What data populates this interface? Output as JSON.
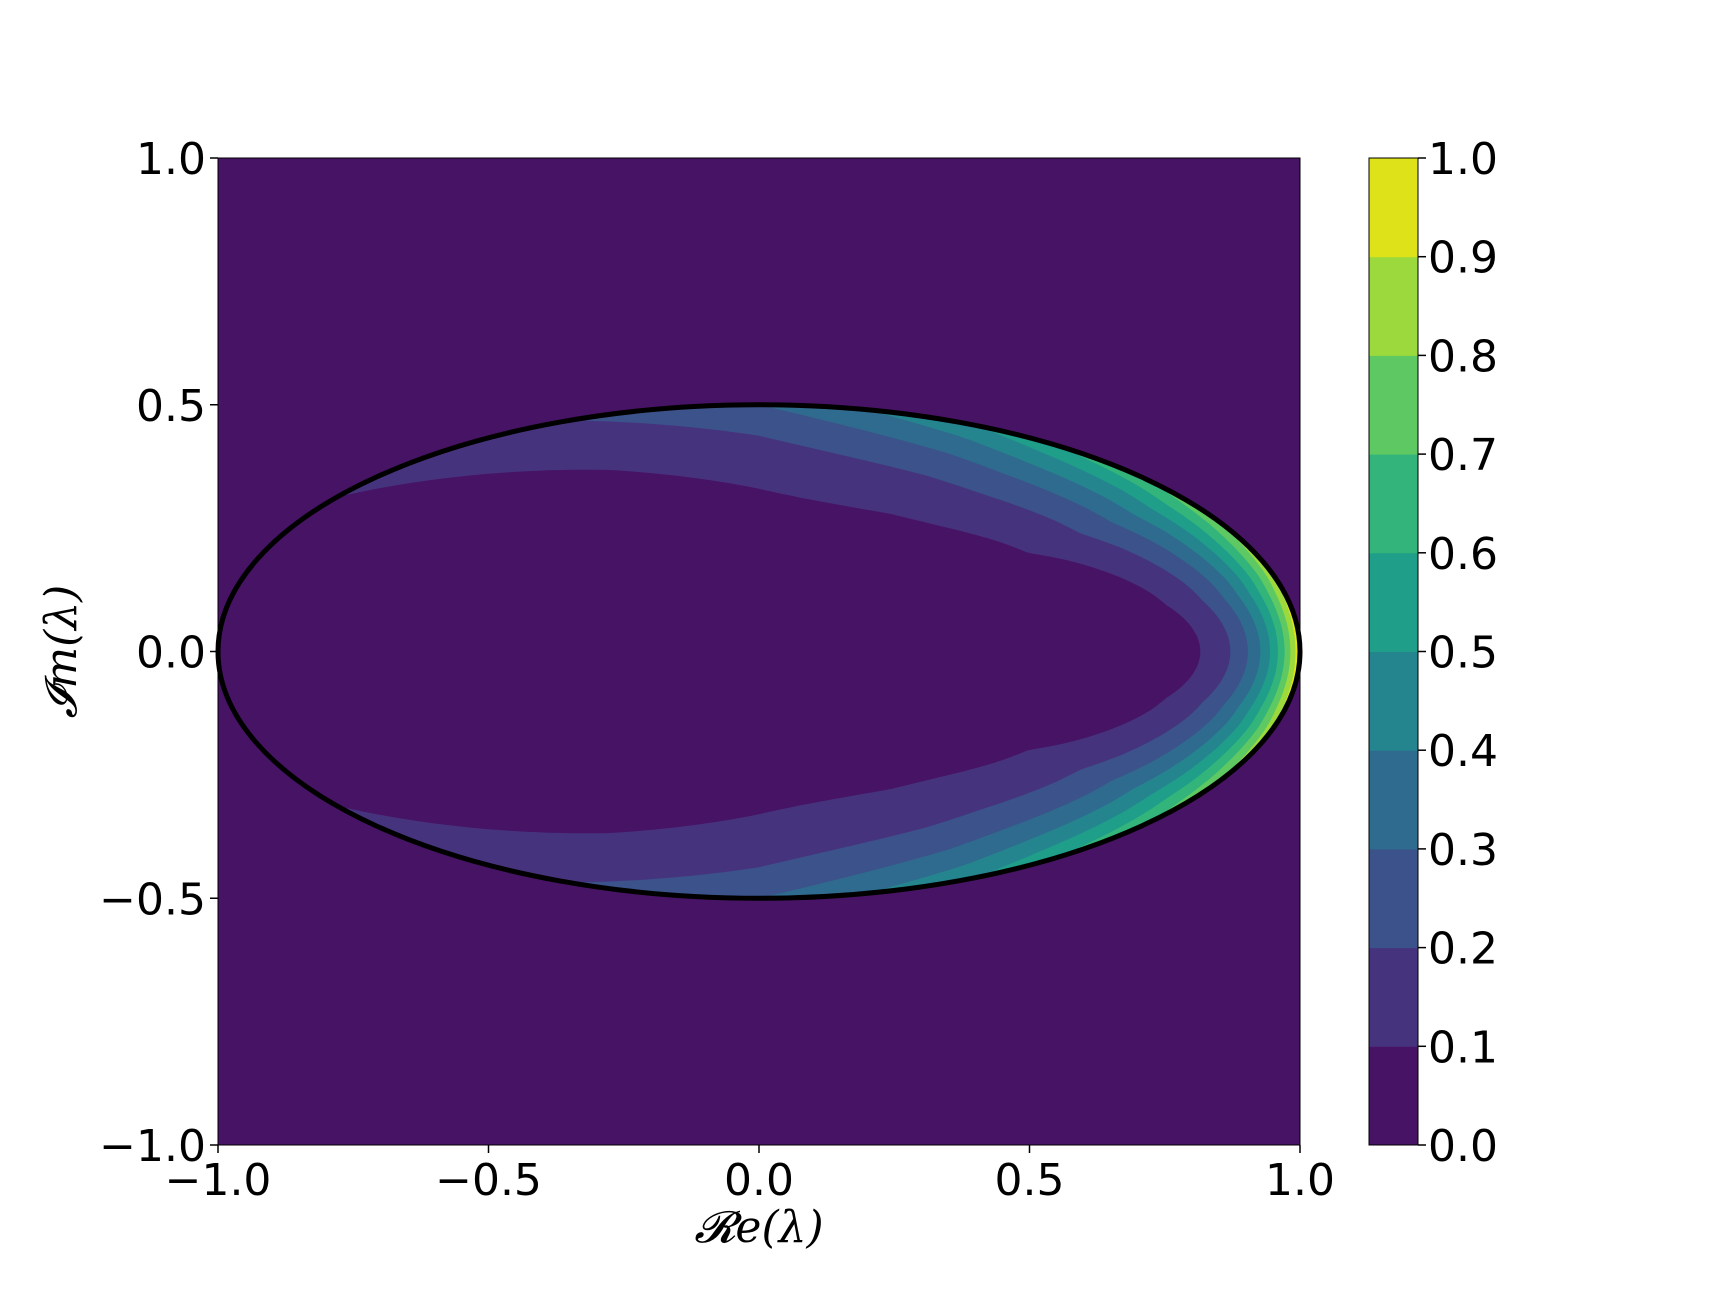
{
  "chart_data": {
    "type": "contourf",
    "xlabel": "𝓡e(λ)",
    "ylabel": "𝓘m(λ)",
    "xlim": [
      -1.0,
      1.0
    ],
    "ylim": [
      -1.0,
      1.0
    ],
    "xticks": [
      "−1.0",
      "−0.5",
      "0.0",
      "0.5",
      "1.0"
    ],
    "xtick_values": [
      -1.0,
      -0.5,
      0.0,
      0.5,
      1.0
    ],
    "yticks": [
      "−1.0",
      "−0.5",
      "0.0",
      "0.5",
      "1.0"
    ],
    "ytick_values": [
      -1.0,
      -0.5,
      0.0,
      0.5,
      1.0
    ],
    "grid": false,
    "colormap": "viridis",
    "levels": [
      0.0,
      0.1,
      0.2,
      0.3,
      0.4,
      0.5,
      0.6,
      0.7,
      0.8,
      0.9,
      1.0
    ],
    "level_colors": [
      "#471365",
      "#46337e",
      "#3b528b",
      "#2f6b8e",
      "#25858e",
      "#1f9e89",
      "#32b47b",
      "#5ec962",
      "#9bd93c",
      "#dde318"
    ],
    "colorbar": {
      "ticks": [
        "0.0",
        "0.1",
        "0.2",
        "0.3",
        "0.4",
        "0.5",
        "0.6",
        "0.7",
        "0.8",
        "0.9",
        "1.0"
      ],
      "tick_values": [
        0.0,
        0.1,
        0.2,
        0.3,
        0.4,
        0.5,
        0.6,
        0.7,
        0.8,
        0.9,
        1.0
      ],
      "placement": "right"
    },
    "boundary_curve": {
      "shape": "ellipse",
      "center": [
        0.0,
        0.0
      ],
      "semi_axis_re": 1.0,
      "semi_axis_im": 0.5,
      "color": "#000000"
    },
    "contour_edge_crossings_upper": [
      {
        "level": 0.1,
        "re": -0.78
      },
      {
        "level": 0.2,
        "re": -0.35
      },
      {
        "level": 0.3,
        "re": 0.0
      },
      {
        "level": 0.4,
        "re": 0.2
      },
      {
        "level": 0.5,
        "re": 0.4
      },
      {
        "level": 0.6,
        "re": 0.55
      },
      {
        "level": 0.7,
        "re": 0.72
      },
      {
        "level": 0.8,
        "re": 0.85
      },
      {
        "level": 0.9,
        "re": 0.95
      }
    ],
    "contour_real_axis_crossings": [
      {
        "level": 0.1,
        "re": 0.82
      },
      {
        "level": 0.2,
        "re": 0.86
      },
      {
        "level": 0.3,
        "re": 0.885
      },
      {
        "level": 0.4,
        "re": 0.91
      },
      {
        "level": 0.5,
        "re": 0.93
      },
      {
        "level": 0.6,
        "re": 0.945
      },
      {
        "level": 0.7,
        "re": 0.96
      },
      {
        "level": 0.8,
        "re": 0.975
      },
      {
        "level": 0.9,
        "re": 0.99
      }
    ]
  }
}
